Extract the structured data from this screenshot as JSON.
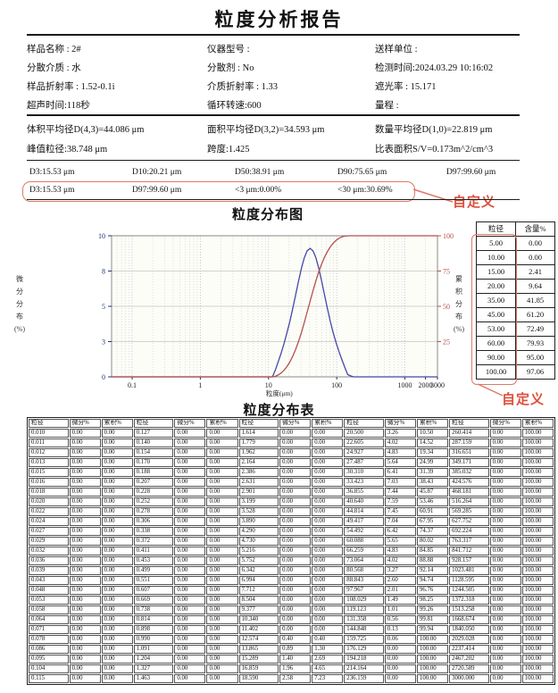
{
  "report": {
    "title": "粒度分析报告",
    "accent_color": "#dd7a66",
    "annotation_color": "#dd4f3a",
    "info_rows": [
      [
        "样品名称 : 2#",
        "仪器型号 :",
        "送样单位 :"
      ],
      [
        "分散介质 : 水",
        "分散剂 : No",
        "检测时间:2024.03.29 10:16:02"
      ],
      [
        "样品折射率 : 1.52-0.1i",
        "介质折射率 : 1.33",
        "遮光率 : 15.171"
      ],
      [
        "超声时间:118秒",
        "循环转速:600",
        "量程 :"
      ]
    ],
    "stats_rows": [
      [
        "体积平均径D(4,3)=44.086 μm",
        "面积平均径D(3,2)=34.593 μm",
        "数量平均径D(1,0)=22.819 μm"
      ],
      [
        "峰值粒径:38.748 μm",
        "跨度:1.425",
        "比表面积S/V=0.173m^2/cm^3"
      ]
    ],
    "d_values": [
      "D3:15.53 μm",
      "D10:20.21 μm",
      "D50:38.91 μm",
      "D90:75.65 μm",
      "D97:99.60 μm"
    ],
    "custom_values": [
      "D3:15.53 μm",
      "D97:99.60 μm",
      "<3 μm:0.00%",
      "<30 μm:30.69%"
    ],
    "custom_annotation": "自定义"
  },
  "side_table": {
    "headers": [
      "粒径",
      "含量%"
    ],
    "rows": [
      [
        "5.00",
        "0.00"
      ],
      [
        "10.00",
        "0.00"
      ],
      [
        "15.00",
        "2.41"
      ],
      [
        "20.00",
        "9.64"
      ],
      [
        "35.00",
        "41.85"
      ],
      [
        "45.00",
        "61.20"
      ],
      [
        "53.00",
        "72.49"
      ],
      [
        "60.00",
        "79.93"
      ],
      [
        "90.00",
        "95.00"
      ],
      [
        "100.00",
        "97.06"
      ]
    ],
    "annotation": "自定义"
  },
  "dist_table": {
    "title": "粒度分布表",
    "headers": [
      "粒径",
      "微分%",
      "累积%"
    ],
    "rows": [
      [
        "0.010",
        "0.00",
        "0.00",
        "0.127",
        "0.00",
        "0.00",
        "1.614",
        "0.00",
        "0.00",
        "20.500",
        "3.26",
        "10.50",
        "260.414",
        "0.00",
        "100.00"
      ],
      [
        "0.011",
        "0.00",
        "0.00",
        "0.140",
        "0.00",
        "0.00",
        "1.779",
        "0.00",
        "0.00",
        "22.605",
        "4.02",
        "14.52",
        "287.159",
        "0.00",
        "100.00"
      ],
      [
        "0.012",
        "0.00",
        "0.00",
        "0.154",
        "0.00",
        "0.00",
        "1.962",
        "0.00",
        "0.00",
        "24.927",
        "4.83",
        "19.34",
        "316.651",
        "0.00",
        "100.00"
      ],
      [
        "0.013",
        "0.00",
        "0.00",
        "0.170",
        "0.00",
        "0.00",
        "2.164",
        "0.00",
        "0.00",
        "27.487",
        "5.64",
        "24.99",
        "349.171",
        "0.00",
        "100.00"
      ],
      [
        "0.015",
        "0.00",
        "0.00",
        "0.188",
        "0.00",
        "0.00",
        "2.386",
        "0.00",
        "0.00",
        "30.310",
        "6.41",
        "31.39",
        "385.032",
        "0.00",
        "100.00"
      ],
      [
        "0.016",
        "0.00",
        "0.00",
        "0.207",
        "0.00",
        "0.00",
        "2.631",
        "0.00",
        "0.00",
        "33.423",
        "7.03",
        "38.43",
        "424.576",
        "0.00",
        "100.00"
      ],
      [
        "0.018",
        "0.00",
        "0.00",
        "0.228",
        "0.00",
        "0.00",
        "2.901",
        "0.00",
        "0.00",
        "36.855",
        "7.44",
        "45.87",
        "468.181",
        "0.00",
        "100.00"
      ],
      [
        "0.020",
        "0.00",
        "0.00",
        "0.252",
        "0.00",
        "0.00",
        "3.199",
        "0.00",
        "0.00",
        "40.640",
        "7.59",
        "53.46",
        "516.264",
        "0.00",
        "100.00"
      ],
      [
        "0.022",
        "0.00",
        "0.00",
        "0.278",
        "0.00",
        "0.00",
        "3.528",
        "0.00",
        "0.00",
        "44.814",
        "7.45",
        "60.91",
        "569.285",
        "0.00",
        "100.00"
      ],
      [
        "0.024",
        "0.00",
        "0.00",
        "0.306",
        "0.00",
        "0.00",
        "3.890",
        "0.00",
        "0.00",
        "49.417",
        "7.04",
        "67.95",
        "627.752",
        "0.00",
        "100.00"
      ],
      [
        "0.027",
        "0.00",
        "0.00",
        "0.338",
        "0.00",
        "0.00",
        "4.290",
        "0.00",
        "0.00",
        "54.492",
        "6.42",
        "74.37",
        "692.224",
        "0.00",
        "100.00"
      ],
      [
        "0.029",
        "0.00",
        "0.00",
        "0.372",
        "0.00",
        "0.00",
        "4.730",
        "0.00",
        "0.00",
        "60.088",
        "5.65",
        "80.02",
        "763.317",
        "0.00",
        "100.00"
      ],
      [
        "0.032",
        "0.00",
        "0.00",
        "0.411",
        "0.00",
        "0.00",
        "5.216",
        "0.00",
        "0.00",
        "66.259",
        "4.83",
        "84.85",
        "841.712",
        "0.00",
        "100.00"
      ],
      [
        "0.036",
        "0.00",
        "0.00",
        "0.453",
        "0.00",
        "0.00",
        "5.752",
        "0.00",
        "0.00",
        "73.064",
        "4.02",
        "88.88",
        "928.157",
        "0.00",
        "100.00"
      ],
      [
        "0.039",
        "0.00",
        "0.00",
        "0.499",
        "0.00",
        "0.00",
        "6.342",
        "0.00",
        "0.00",
        "80.568",
        "3.27",
        "92.14",
        "1023.481",
        "0.00",
        "100.00"
      ],
      [
        "0.043",
        "0.00",
        "0.00",
        "0.551",
        "0.00",
        "0.00",
        "6.994",
        "0.00",
        "0.00",
        "88.843",
        "2.60",
        "94.74",
        "1128.595",
        "0.00",
        "100.00"
      ],
      [
        "0.048",
        "0.00",
        "0.00",
        "0.607",
        "0.00",
        "0.00",
        "7.712",
        "0.00",
        "0.00",
        "97.967",
        "2.01",
        "96.76",
        "1244.505",
        "0.00",
        "100.00"
      ],
      [
        "0.053",
        "0.00",
        "0.00",
        "0.669",
        "0.00",
        "0.00",
        "8.504",
        "0.00",
        "0.00",
        "108.029",
        "1.49",
        "98.25",
        "1372.318",
        "0.00",
        "100.00"
      ],
      [
        "0.058",
        "0.00",
        "0.00",
        "0.738",
        "0.00",
        "0.00",
        "9.377",
        "0.00",
        "0.00",
        "119.123",
        "1.01",
        "99.26",
        "1513.258",
        "0.00",
        "100.00"
      ],
      [
        "0.064",
        "0.00",
        "0.00",
        "0.814",
        "0.00",
        "0.00",
        "10.340",
        "0.00",
        "0.00",
        "131.358",
        "0.56",
        "99.81",
        "1668.674",
        "0.00",
        "100.00"
      ],
      [
        "0.071",
        "0.00",
        "0.00",
        "0.898",
        "0.00",
        "0.00",
        "11.402",
        "0.00",
        "0.00",
        "144.848",
        "0.13",
        "99.94",
        "1840.050",
        "0.00",
        "100.00"
      ],
      [
        "0.078",
        "0.00",
        "0.00",
        "0.990",
        "0.00",
        "0.00",
        "12.574",
        "0.40",
        "0.40",
        "159.725",
        "0.06",
        "100.00",
        "2029.028",
        "0.00",
        "100.00"
      ],
      [
        "0.086",
        "0.00",
        "0.00",
        "1.091",
        "0.00",
        "0.00",
        "13.865",
        "0.89",
        "1.30",
        "176.129",
        "0.00",
        "100.00",
        "2237.414",
        "0.00",
        "100.00"
      ],
      [
        "0.095",
        "0.00",
        "0.00",
        "1.204",
        "0.00",
        "0.00",
        "15.289",
        "1.40",
        "2.69",
        "194.218",
        "0.00",
        "100.00",
        "2467.202",
        "0.00",
        "100.00"
      ],
      [
        "0.104",
        "0.00",
        "0.00",
        "1.327",
        "0.00",
        "0.00",
        "16.859",
        "1.96",
        "4.65",
        "214.164",
        "0.00",
        "100.00",
        "2720.589",
        "0.00",
        "100.00"
      ],
      [
        "0.115",
        "0.00",
        "0.00",
        "1.463",
        "0.00",
        "0.00",
        "18.590",
        "2.58",
        "7.23",
        "236.159",
        "0.00",
        "100.00",
        "3000.000",
        "0.00",
        "100.00"
      ]
    ]
  },
  "chart_data": {
    "type": "line",
    "title": "粒度分布图",
    "xlabel": "粒度(μm)",
    "x_log": true,
    "x_range": [
      0.05,
      3000
    ],
    "x_tick_labels": [
      "0.1",
      "1",
      "10",
      "100",
      "1000",
      "2000",
      "3000"
    ],
    "grid": true,
    "left_axis": {
      "label": "微分分布(%)",
      "ticks": [
        "0",
        "3",
        "5",
        "8",
        "10"
      ],
      "range": [
        0,
        10
      ]
    },
    "right_axis": {
      "label": "累积分布(%)",
      "ticks": [
        "25",
        "50",
        "75",
        "100"
      ],
      "range": [
        0,
        100
      ]
    },
    "series": [
      {
        "id": "diff-curve",
        "name": "微分分布",
        "axis": "left",
        "color": "#4646a8",
        "display_scale": 1.2,
        "points": [
          [
            10.34,
            0.0
          ],
          [
            11.402,
            0.0
          ],
          [
            12.574,
            0.4
          ],
          [
            13.865,
            0.89
          ],
          [
            15.289,
            1.4
          ],
          [
            16.859,
            1.96
          ],
          [
            18.59,
            2.58
          ],
          [
            20.5,
            3.26
          ],
          [
            22.605,
            4.02
          ],
          [
            24.927,
            4.83
          ],
          [
            27.487,
            5.64
          ],
          [
            30.31,
            6.41
          ],
          [
            33.423,
            7.03
          ],
          [
            36.855,
            7.44
          ],
          [
            40.64,
            7.59
          ],
          [
            44.814,
            7.45
          ],
          [
            49.417,
            7.04
          ],
          [
            54.492,
            6.42
          ],
          [
            60.088,
            5.65
          ],
          [
            66.259,
            4.83
          ],
          [
            73.064,
            4.02
          ],
          [
            80.568,
            3.27
          ],
          [
            88.843,
            2.6
          ],
          [
            97.967,
            2.01
          ],
          [
            108.029,
            1.49
          ],
          [
            119.123,
            1.01
          ],
          [
            131.358,
            0.56
          ],
          [
            144.848,
            0.13
          ],
          [
            159.725,
            0.06
          ],
          [
            176.129,
            0.0
          ]
        ]
      },
      {
        "id": "cum-curve",
        "name": "累积分布",
        "axis": "right",
        "color": "#b5504a",
        "display_scale": 1,
        "points": [
          [
            11.402,
            0.0
          ],
          [
            12.574,
            0.4
          ],
          [
            13.865,
            1.3
          ],
          [
            15.289,
            2.69
          ],
          [
            16.859,
            4.65
          ],
          [
            18.59,
            7.23
          ],
          [
            20.5,
            10.5
          ],
          [
            22.605,
            14.52
          ],
          [
            24.927,
            19.34
          ],
          [
            27.487,
            24.99
          ],
          [
            30.31,
            31.39
          ],
          [
            33.423,
            38.43
          ],
          [
            36.855,
            45.87
          ],
          [
            40.64,
            53.46
          ],
          [
            44.814,
            60.91
          ],
          [
            49.417,
            67.95
          ],
          [
            54.492,
            74.37
          ],
          [
            60.088,
            80.02
          ],
          [
            66.259,
            84.85
          ],
          [
            73.064,
            88.88
          ],
          [
            80.568,
            92.14
          ],
          [
            88.843,
            94.74
          ],
          [
            97.967,
            96.76
          ],
          [
            108.029,
            98.25
          ],
          [
            119.123,
            99.26
          ],
          [
            131.358,
            99.81
          ],
          [
            144.848,
            99.94
          ],
          [
            159.725,
            100.0
          ]
        ]
      }
    ]
  }
}
